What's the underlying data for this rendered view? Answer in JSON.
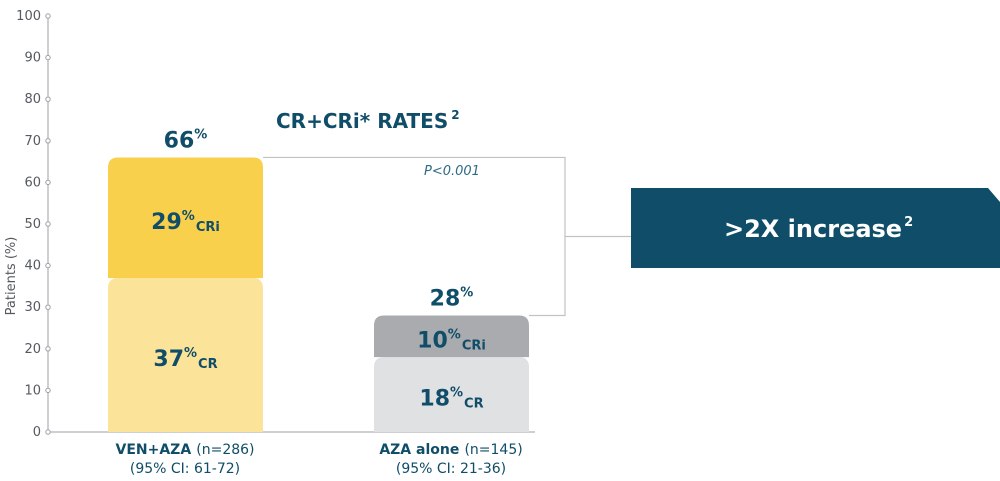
{
  "colors": {
    "axis": "#9aa0a6",
    "text_dark": "#0f4d68",
    "bracket": "#bfc3c6",
    "banner": "#0f4d68"
  },
  "chart_data": {
    "type": "bar",
    "stacked": true,
    "title": "CR+CRi* RATES",
    "title_sup": "2",
    "ylabel": "Patients (%)",
    "ylim": [
      0,
      100
    ],
    "yticks": [
      0,
      10,
      20,
      30,
      40,
      50,
      60,
      70,
      80,
      90,
      100
    ],
    "grid": false,
    "categories": [
      {
        "name": "VEN+AZA",
        "n": "(n=286)",
        "ci": "(95% CI: 61-72)"
      },
      {
        "name": "AZA alone",
        "n": "(n=145)",
        "ci": "(95% CI: 21-36)"
      }
    ],
    "series": [
      {
        "name": "CR",
        "values": [
          37,
          18
        ],
        "colors": [
          "#fbe39a",
          "#e0e1e2"
        ]
      },
      {
        "name": "CRi",
        "values": [
          29,
          10
        ],
        "colors": [
          "#f9d04c",
          "#a9abae"
        ]
      }
    ],
    "totals": [
      66,
      28
    ],
    "pct_symbol": "%",
    "p_value": "P<0.001",
    "callout": {
      "text": ">2X increase",
      "sup": "2"
    }
  }
}
